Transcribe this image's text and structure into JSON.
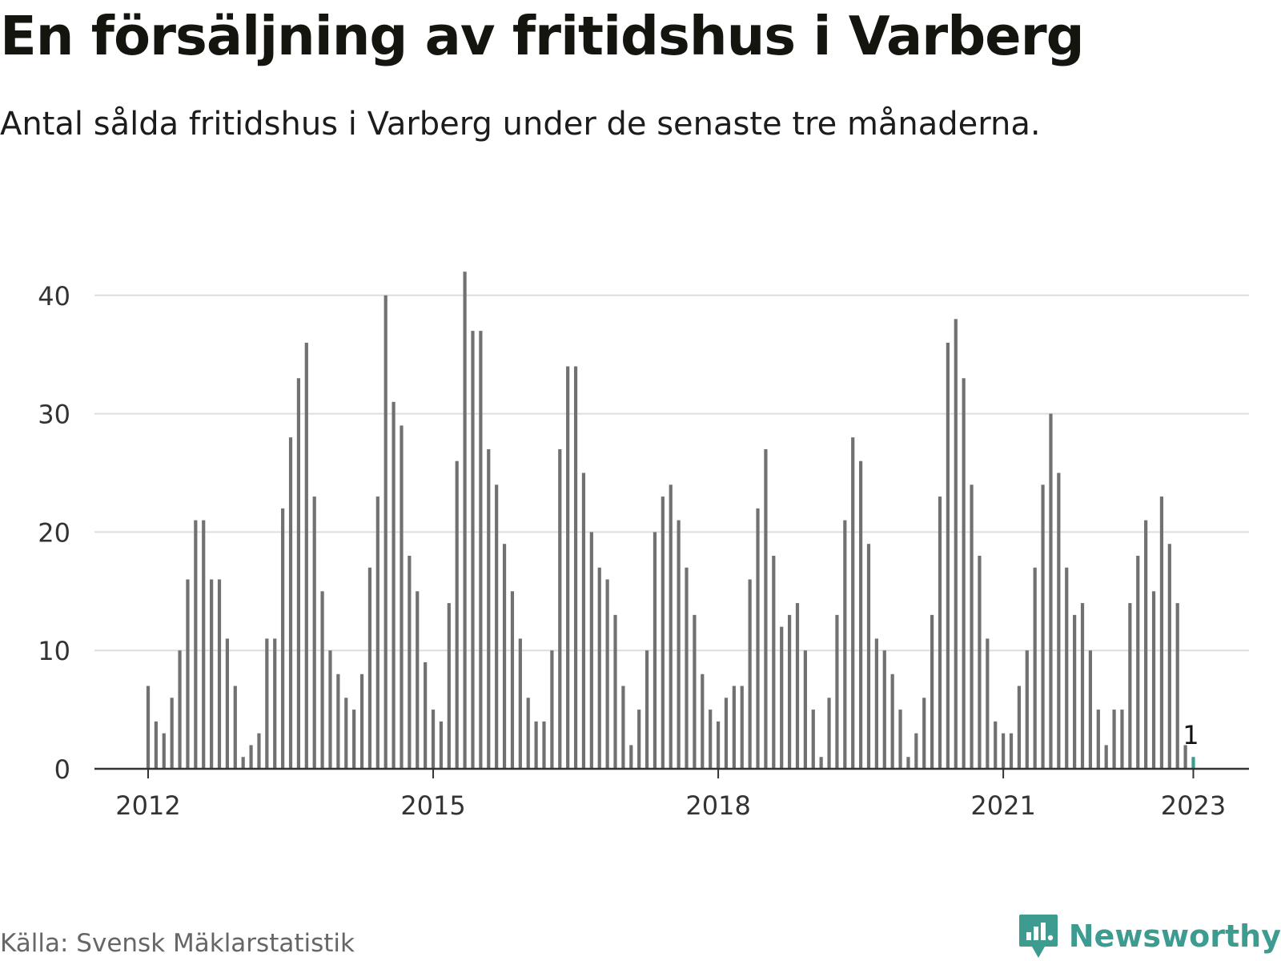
{
  "header": {
    "title": "En försäljning av fritidshus i Varberg",
    "subtitle": "Antal sålda fritidshus i Varberg under de senaste tre månaderna."
  },
  "footer": {
    "source": "Källa: Svensk Mäklarstatistik",
    "brand": "Newsworthy"
  },
  "colors": {
    "bar": "#717171",
    "highlight": "#3d9b90",
    "grid": "#dedede",
    "axis": "#333333",
    "brand": "#3d9b90"
  },
  "chart_data": {
    "type": "bar",
    "x_start": "2012-01",
    "x_end": "2023-01",
    "x_ticks": [
      "2012",
      "2015",
      "2018",
      "2021",
      "2023"
    ],
    "y_ticks": [
      0,
      10,
      20,
      30,
      40
    ],
    "ylim": [
      0,
      42
    ],
    "grid": true,
    "values": [
      7,
      4,
      3,
      6,
      10,
      16,
      21,
      21,
      16,
      16,
      11,
      7,
      1,
      2,
      3,
      11,
      11,
      22,
      28,
      33,
      36,
      23,
      15,
      10,
      8,
      6,
      5,
      8,
      17,
      23,
      40,
      31,
      29,
      18,
      15,
      9,
      5,
      4,
      14,
      26,
      42,
      37,
      37,
      27,
      24,
      19,
      15,
      11,
      6,
      4,
      4,
      10,
      27,
      34,
      34,
      25,
      20,
      17,
      16,
      13,
      7,
      2,
      5,
      10,
      20,
      23,
      24,
      21,
      17,
      13,
      8,
      5,
      4,
      6,
      7,
      7,
      16,
      22,
      27,
      18,
      12,
      13,
      14,
      10,
      5,
      1,
      6,
      13,
      21,
      28,
      26,
      19,
      11,
      10,
      8,
      5,
      1,
      3,
      6,
      13,
      23,
      36,
      38,
      33,
      24,
      18,
      11,
      4,
      3,
      3,
      7,
      10,
      17,
      24,
      30,
      25,
      17,
      13,
      14,
      10,
      5,
      2,
      5,
      5,
      14,
      18,
      21,
      15,
      23,
      19,
      14,
      2,
      1
    ],
    "highlight_label": "1"
  }
}
